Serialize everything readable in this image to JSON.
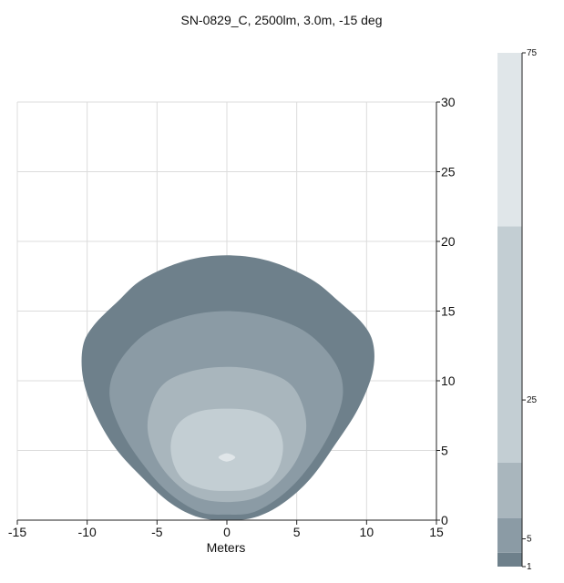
{
  "chart_data": {
    "type": "heatmap",
    "title": "SN-0829_C, 2500lm, 3.0m, -15 deg",
    "xlabel": "Meters",
    "ylabel": "",
    "xlim": [
      -15,
      15
    ],
    "ylim": [
      0,
      30
    ],
    "x_ticks": [
      "-15",
      "-10",
      "-5",
      "0",
      "5",
      "10",
      "15"
    ],
    "y_ticks": [
      "0",
      "5",
      "10",
      "15",
      "20",
      "25",
      "30"
    ],
    "grid": true,
    "colorbar": {
      "range": [
        1,
        75
      ],
      "tick_labels": [
        "75",
        "25",
        "5",
        "1"
      ],
      "band_edges": [
        1,
        3,
        8,
        16,
        50,
        75
      ],
      "band_colors": [
        "#6e808b",
        "#8b9ba5",
        "#a9b6bd",
        "#c3ced3",
        "#e0e6e9"
      ]
    },
    "contours": [
      {
        "level": 1,
        "color": "#6e808b",
        "points": [
          [
            0,
            19
          ],
          [
            3,
            18.6
          ],
          [
            6,
            17.3
          ],
          [
            8,
            15.7
          ],
          [
            9.8,
            14
          ],
          [
            10.5,
            12.5
          ],
          [
            10.4,
            10.5
          ],
          [
            9.4,
            8
          ],
          [
            7.8,
            5.5
          ],
          [
            6,
            3
          ],
          [
            4,
            1.2
          ],
          [
            2,
            0.2
          ],
          [
            0,
            0
          ],
          [
            -2,
            0.2
          ],
          [
            -4,
            1.2
          ],
          [
            -6,
            3
          ],
          [
            -8,
            5.2
          ],
          [
            -9.5,
            7.8
          ],
          [
            -10.3,
            10.2
          ],
          [
            -10.3,
            12.5
          ],
          [
            -9.5,
            14
          ],
          [
            -7.8,
            15.7
          ],
          [
            -6,
            17.3
          ],
          [
            -3,
            18.6
          ]
        ]
      },
      {
        "level": 3,
        "color": "#8b9ba5",
        "points": [
          [
            0,
            15
          ],
          [
            3,
            14.6
          ],
          [
            5.8,
            13.4
          ],
          [
            7.8,
            11.2
          ],
          [
            8.3,
            9
          ],
          [
            7.5,
            6.5
          ],
          [
            6,
            4
          ],
          [
            4.2,
            2
          ],
          [
            2,
            0.6
          ],
          [
            0,
            0.4
          ],
          [
            -2,
            0.6
          ],
          [
            -4.2,
            2
          ],
          [
            -6,
            4
          ],
          [
            -7.6,
            6.5
          ],
          [
            -8.4,
            9
          ],
          [
            -7.8,
            11.2
          ],
          [
            -5.8,
            13.4
          ],
          [
            -3,
            14.6
          ]
        ]
      },
      {
        "level": 8,
        "color": "#a9b6bd",
        "points": [
          [
            0,
            11
          ],
          [
            2.5,
            10.7
          ],
          [
            4.5,
            9.8
          ],
          [
            5.5,
            8
          ],
          [
            5.6,
            6
          ],
          [
            4.6,
            3.7
          ],
          [
            2.5,
            1.8
          ],
          [
            0,
            1.3
          ],
          [
            -2.5,
            1.8
          ],
          [
            -4.6,
            3.7
          ],
          [
            -5.6,
            6
          ],
          [
            -5.5,
            8
          ],
          [
            -4.5,
            9.8
          ],
          [
            -2.5,
            10.7
          ]
        ]
      },
      {
        "level": 16,
        "color": "#c3ced3",
        "points": [
          [
            0,
            8
          ],
          [
            2,
            7.8
          ],
          [
            3.4,
            7
          ],
          [
            4,
            5.6
          ],
          [
            3.8,
            4
          ],
          [
            3,
            2.8
          ],
          [
            1.5,
            2.2
          ],
          [
            0,
            2.1
          ],
          [
            -1.5,
            2.2
          ],
          [
            -3,
            2.8
          ],
          [
            -3.8,
            4
          ],
          [
            -4,
            5.6
          ],
          [
            -3.4,
            7
          ],
          [
            -2,
            7.8
          ]
        ]
      },
      {
        "level": 50,
        "color": "#e0e6e9",
        "points": [
          [
            0,
            4.8
          ],
          [
            0.6,
            4.5
          ],
          [
            0,
            4.2
          ],
          [
            -0.6,
            4.5
          ]
        ]
      }
    ]
  }
}
